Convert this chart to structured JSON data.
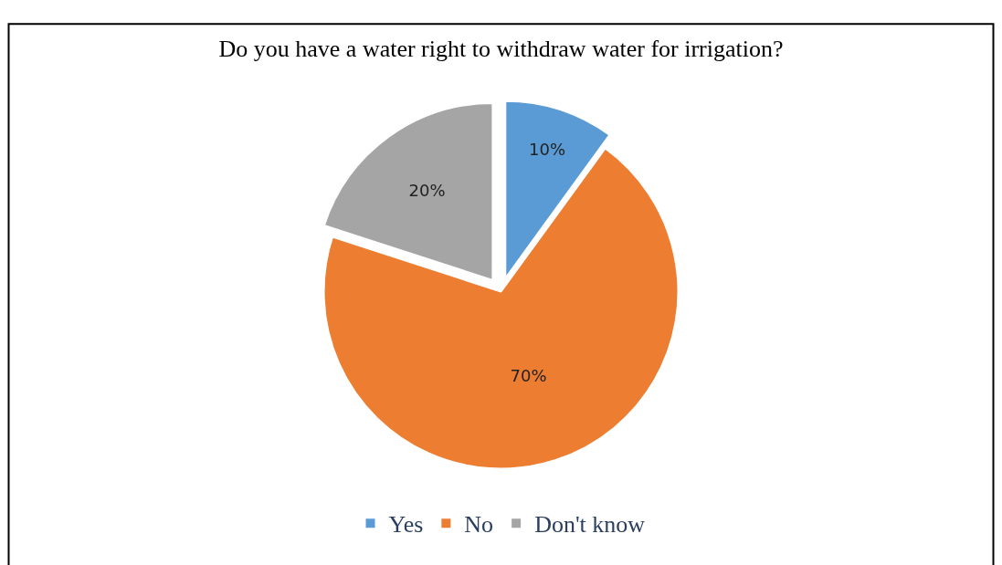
{
  "chart_data": {
    "type": "pie",
    "title": "Do you have a water right to withdraw water for irrigation?",
    "categories": [
      "Yes",
      "No",
      "Don't know"
    ],
    "values": [
      10,
      70,
      20
    ],
    "colors": [
      "#5b9bd5",
      "#ed7d31",
      "#a5a5a5"
    ],
    "value_labels": [
      "10%",
      "70%",
      "20%"
    ],
    "legend": "bottom"
  }
}
